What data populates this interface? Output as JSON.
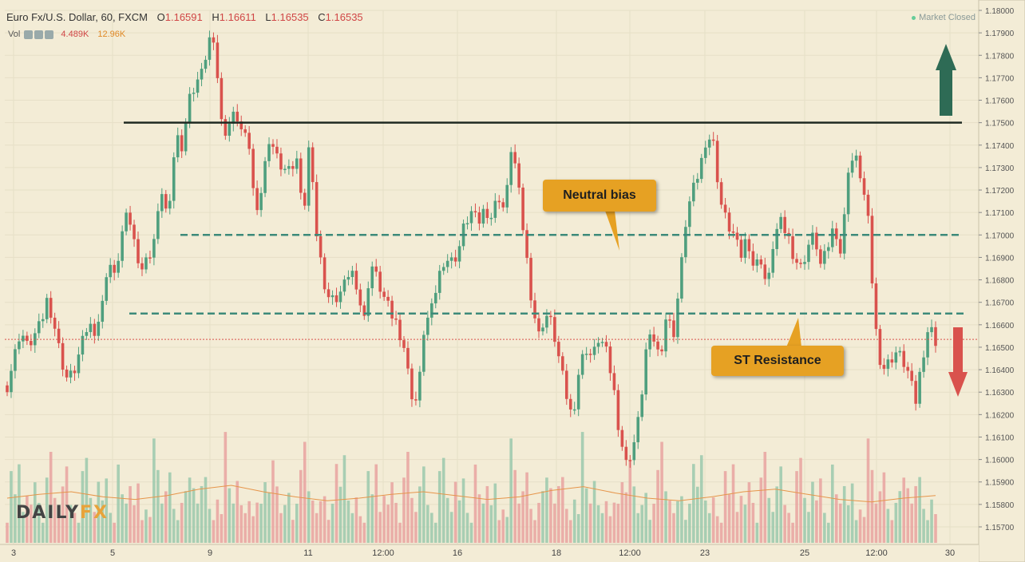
{
  "header": {
    "symbol": "Euro Fx/U.S. Dollar, 60, FXCM",
    "o_label": "O",
    "o_value": "1.16591",
    "h_label": "H",
    "h_value": "1.16611",
    "l_label": "L",
    "l_value": "1.16535",
    "c_label": "C",
    "c_value": "1.16535"
  },
  "volume_legend": {
    "label": "Vol",
    "value_a": "4.489K",
    "value_b": "12.96K"
  },
  "market_status": "Market Closed",
  "annotations": {
    "neutral": "Neutral bias",
    "resistance": "ST Resistance"
  },
  "brand": {
    "part1": "DAILY",
    "part2": "FX"
  },
  "colors": {
    "up": "#4f9f7e",
    "down": "#d9524d",
    "bg": "#f3ecd6",
    "callout": "#e6a123",
    "level": "#3d8a7a",
    "resistance_line": "#1f2a22"
  },
  "chart_data": {
    "type": "candlestick",
    "ylim": [
      1.1565,
      1.1805
    ],
    "y_ticks": [
      "1.18000",
      "1.17900",
      "1.17800",
      "1.17700",
      "1.17600",
      "1.17500",
      "1.17400",
      "1.17300",
      "1.17200",
      "1.17100",
      "1.17000",
      "1.16900",
      "1.16800",
      "1.16700",
      "1.16600",
      "1.16500",
      "1.16400",
      "1.16300",
      "1.16200",
      "1.16100",
      "1.16000",
      "1.15900",
      "1.15800",
      "1.15700"
    ],
    "x_ticks": [
      "3",
      "5",
      "9",
      "11",
      "12:00",
      "16",
      "18",
      "12:00",
      "23",
      "25",
      "12:00",
      "30"
    ],
    "last_price": "1.16535",
    "levels": [
      {
        "value": 1.175,
        "style": "solid"
      },
      {
        "value": 1.17,
        "style": "dashed"
      },
      {
        "value": 1.1665,
        "style": "dashed"
      }
    ],
    "close_path": [
      1.1633,
      1.1645,
      1.1658,
      1.165,
      1.1655,
      1.166,
      1.1672,
      1.166,
      1.1645,
      1.1635,
      1.164,
      1.165,
      1.166,
      1.1658,
      1.1665,
      1.169,
      1.168,
      1.17,
      1.171,
      1.1695,
      1.1685,
      1.169,
      1.17,
      1.172,
      1.1705,
      1.1745,
      1.174,
      1.176,
      1.1768,
      1.1772,
      1.1788,
      1.178,
      1.1745,
      1.175,
      1.1755,
      1.1745,
      1.174,
      1.1705,
      1.1725,
      1.1745,
      1.1735,
      1.173,
      1.1728,
      1.1735,
      1.1705,
      1.1745,
      1.17,
      1.168,
      1.167,
      1.1672,
      1.1676,
      1.1685,
      1.1678,
      1.166,
      1.1688,
      1.168,
      1.1672,
      1.1665,
      1.166,
      1.165,
      1.163,
      1.1625,
      1.166,
      1.1665,
      1.168,
      1.169,
      1.1688,
      1.1692,
      1.1705,
      1.171,
      1.1705,
      1.1712,
      1.1708,
      1.1718,
      1.171,
      1.1742,
      1.172,
      1.1695,
      1.167,
      1.1655,
      1.1665,
      1.166,
      1.1645,
      1.163,
      1.1618,
      1.164,
      1.165,
      1.1645,
      1.1655,
      1.1648,
      1.1635,
      1.1612,
      1.1598,
      1.1605,
      1.162,
      1.165,
      1.1655,
      1.1645,
      1.1665,
      1.1655,
      1.168,
      1.171,
      1.172,
      1.173,
      1.1745,
      1.174,
      1.1715,
      1.1705,
      1.17,
      1.169,
      1.17,
      1.1685,
      1.169,
      1.1675,
      1.17,
      1.1705,
      1.17,
      1.169,
      1.1685,
      1.1695,
      1.17,
      1.1685,
      1.1695,
      1.1705,
      1.169,
      1.173,
      1.1735,
      1.1725,
      1.1705,
      1.166,
      1.164,
      1.1643,
      1.1648,
      1.1645,
      1.1638,
      1.1625,
      1.1645,
      1.166,
      1.1653
    ],
    "volume_pattern": [
      0.35,
      0.55,
      0.4,
      0.7,
      0.3,
      0.5,
      0.45,
      0.8,
      0.6,
      0.35,
      0.5,
      0.75,
      0.4,
      0.3,
      0.6,
      0.9,
      0.5,
      0.45,
      0.35,
      0.55,
      0.7,
      0.4,
      0.3,
      0.65,
      0.5,
      0.85,
      0.45,
      0.35,
      0.6,
      0.4
    ],
    "volume_avg_path": [
      0.35,
      0.38,
      0.4,
      0.36,
      0.34,
      0.37,
      0.42,
      0.45,
      0.4,
      0.36,
      0.33,
      0.35,
      0.38,
      0.4,
      0.37,
      0.34,
      0.36,
      0.41,
      0.44,
      0.39,
      0.35,
      0.33,
      0.36,
      0.4,
      0.42,
      0.38,
      0.34,
      0.32,
      0.35,
      0.37
    ]
  }
}
